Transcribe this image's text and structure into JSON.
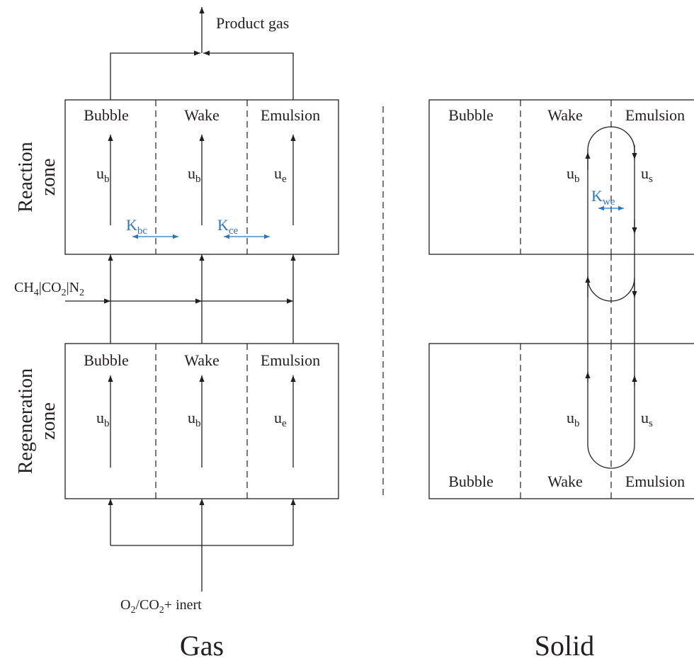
{
  "gas": {
    "title": "Gas",
    "product": "Product gas",
    "zones": [
      {
        "name": [
          "Reaction",
          "zone"
        ],
        "columns": [
          "Bubble",
          "Wake",
          "Emulsion"
        ],
        "velocities": [
          {
            "base": "u",
            "sub": "b"
          },
          {
            "base": "u",
            "sub": "b"
          },
          {
            "base": "u",
            "sub": "e"
          }
        ]
      },
      {
        "name": [
          "Regeneration",
          "zone"
        ],
        "columns": [
          "Bubble",
          "Wake",
          "Emulsion"
        ],
        "velocities": [
          {
            "base": "u",
            "sub": "b"
          },
          {
            "base": "u",
            "sub": "b"
          },
          {
            "base": "u",
            "sub": "e"
          }
        ]
      }
    ],
    "exchange": [
      {
        "base": "K",
        "sub": "bc"
      },
      {
        "base": "K",
        "sub": "ce"
      }
    ],
    "feed_middle": [
      "CH",
      "4",
      "|CO",
      "2",
      "|N",
      "2"
    ],
    "feed_bottom": [
      "O",
      "2",
      "/CO",
      "2",
      "+ inert"
    ]
  },
  "solid": {
    "title": "Solid",
    "reaction_columns": [
      "Bubble",
      "Wake",
      "Emulsion"
    ],
    "regeneration_columns": [
      "Bubble",
      "Wake",
      "Emulsion"
    ],
    "reaction_velocities": [
      {
        "base": "u",
        "sub": "b"
      },
      {
        "base": "u",
        "sub": "s"
      }
    ],
    "regeneration_velocities": [
      {
        "base": "u",
        "sub": "b"
      },
      {
        "base": "u",
        "sub": "s"
      }
    ],
    "exchange": {
      "base": "K",
      "sub": "we"
    }
  }
}
